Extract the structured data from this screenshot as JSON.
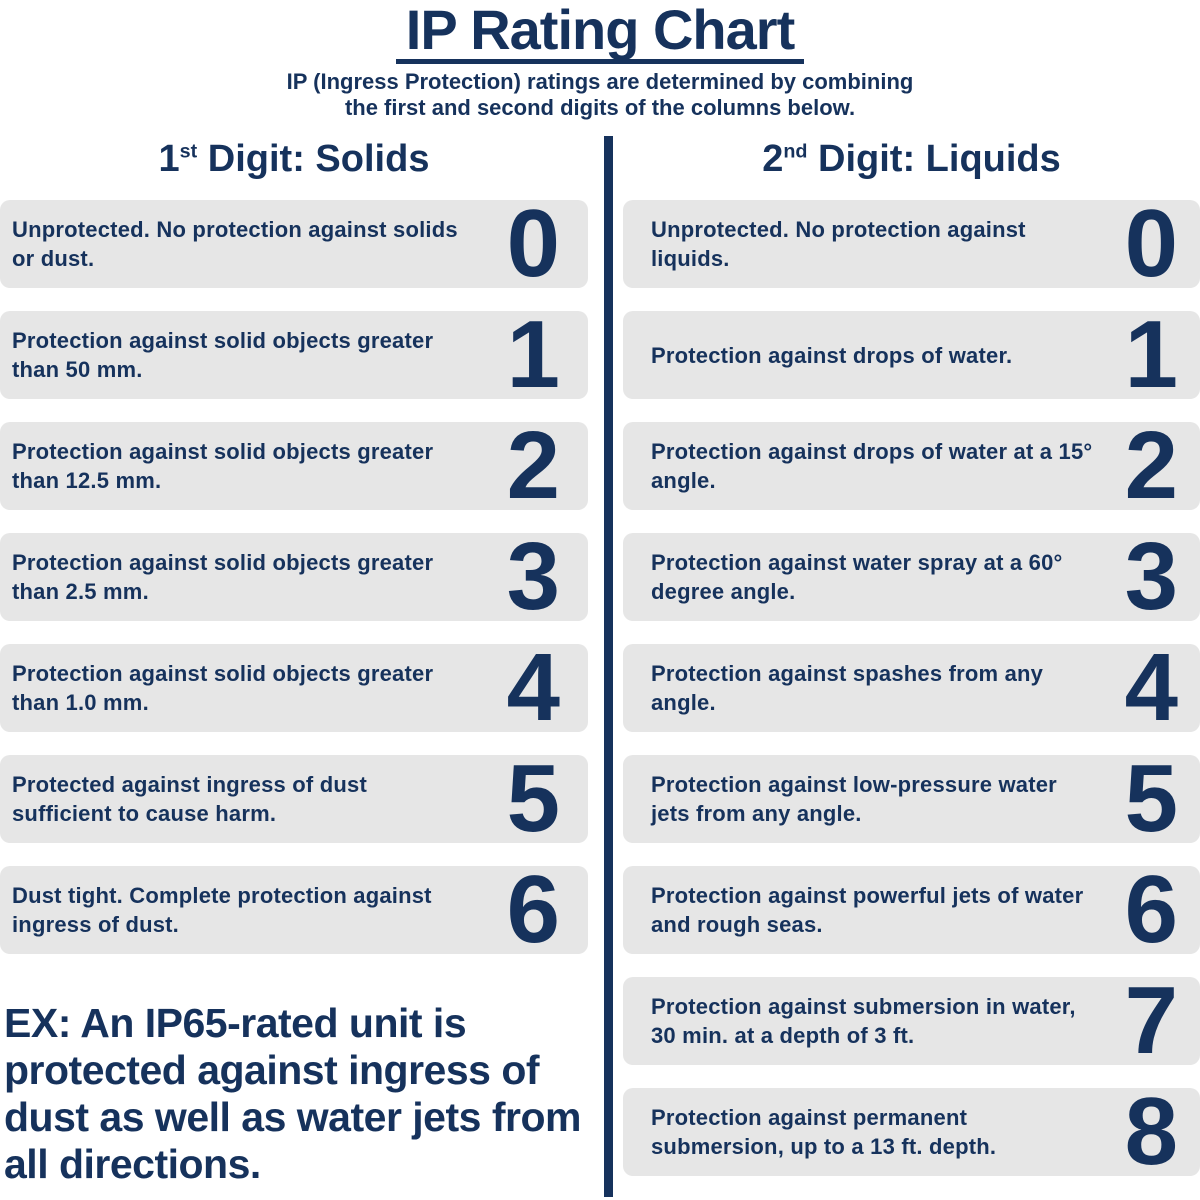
{
  "title": "IP Rating Chart",
  "subtitle_lines": [
    "IP (Ingress Protection) ratings are determined by combining",
    "the first and second digits of the columns below."
  ],
  "columns": [
    {
      "heading": {
        "num": "1",
        "sup": "st",
        "rest": " Digit: Solids"
      },
      "rows": [
        {
          "digit": "0",
          "desc": "Unprotected. No protection against solids or dust."
        },
        {
          "digit": "1",
          "desc": "Protection against solid objects greater than 50 mm."
        },
        {
          "digit": "2",
          "desc": "Protection against solid objects greater than 12.5 mm."
        },
        {
          "digit": "3",
          "desc": "Protection against solid objects greater than 2.5 mm."
        },
        {
          "digit": "4",
          "desc": "Protection against solid objects greater than 1.0 mm."
        },
        {
          "digit": "5",
          "desc": "Protected against ingress of dust sufficient to cause harm."
        },
        {
          "digit": "6",
          "desc": "Dust tight. Complete protection against ingress of dust."
        }
      ]
    },
    {
      "heading": {
        "num": "2",
        "sup": "nd",
        "rest": " Digit: Liquids"
      },
      "rows": [
        {
          "digit": "0",
          "desc": "Unprotected. No protection against liquids."
        },
        {
          "digit": "1",
          "desc": "Protection against drops of water."
        },
        {
          "digit": "2",
          "desc": "Protection against drops of water at a 15° angle."
        },
        {
          "digit": "3",
          "desc": "Protection against water spray at a 60° degree angle."
        },
        {
          "digit": "4",
          "desc": "Protection against spashes from any angle."
        },
        {
          "digit": "5",
          "desc": "Protection against low-pressure water jets from any angle."
        },
        {
          "digit": "6",
          "desc": "Protection against powerful jets of water and rough seas."
        },
        {
          "digit": "7",
          "desc": "Protection against submersion in water, 30 min. at a depth of 3 ft."
        },
        {
          "digit": "8",
          "desc": "Protection against permanent submersion, up to a 13 ft. depth."
        }
      ]
    }
  ],
  "example": "EX: An IP65-rated unit is protected against ingress of dust as well as water jets from all directions.",
  "colors": {
    "navy": "#16325c",
    "box_gray": "#e6e6e6"
  }
}
